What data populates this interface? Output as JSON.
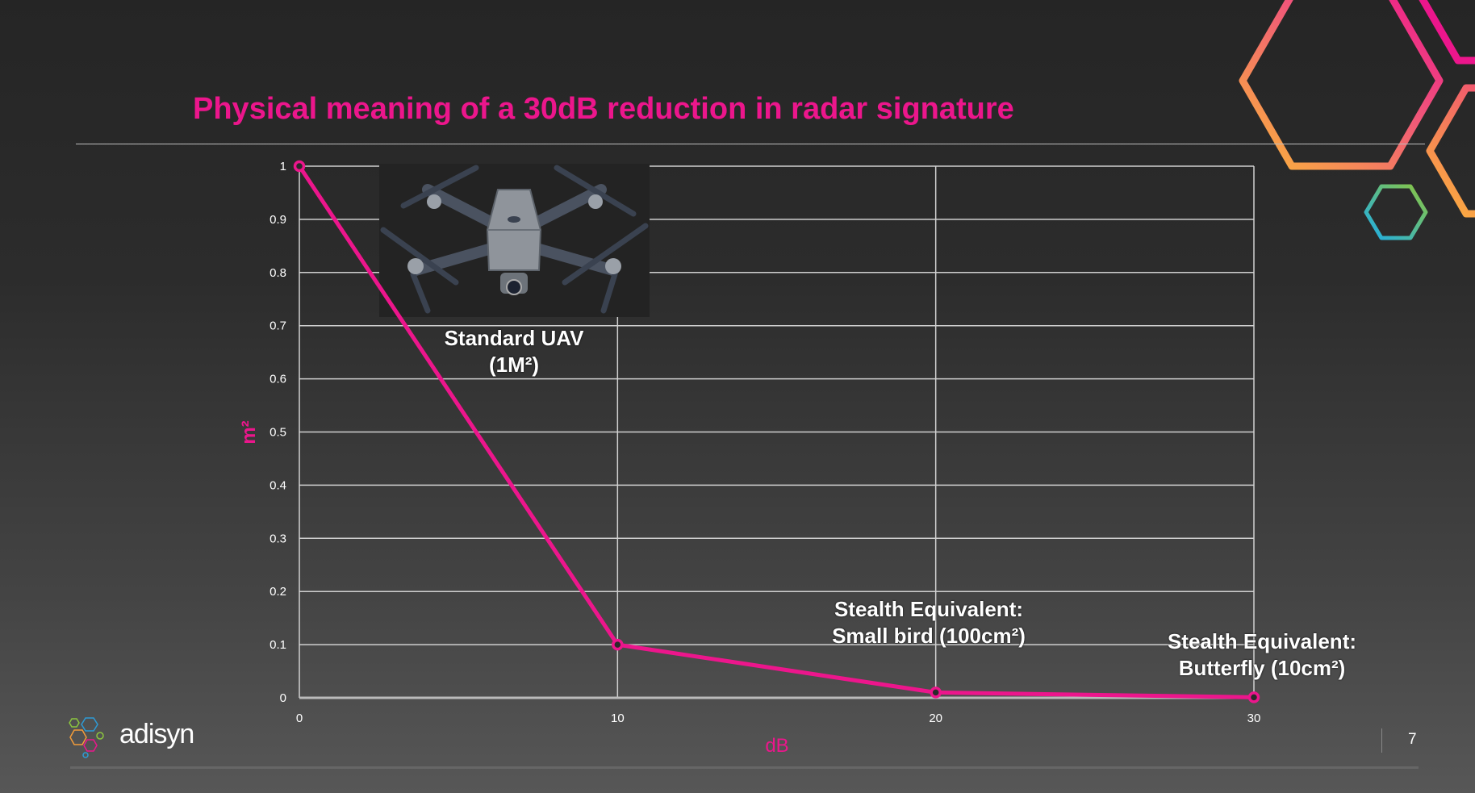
{
  "slide": {
    "title": "Physical meaning of a 30dB reduction in radar signature",
    "page_number": "7",
    "logo_text": "adisyn",
    "accent_color": "#ec168c"
  },
  "annotations": {
    "uav_line1": "Standard UAV",
    "uav_line2": "(1M²)",
    "bird_line1": "Stealth Equivalent:",
    "bird_line2": "Small bird (100cm²)",
    "butterfly_line1": "Stealth Equivalent:",
    "butterfly_line2": "Butterfly (10cm²)",
    "drone_image": "quadcopter-drone-icon"
  },
  "chart_data": {
    "type": "line",
    "title": "",
    "xlabel": "dB",
    "ylabel": "m²",
    "x": [
      0,
      10,
      20,
      30
    ],
    "series": [
      {
        "values": [
          1,
          0.1,
          0.01,
          0.001
        ],
        "color": "#ec168c"
      }
    ],
    "xlim": [
      0,
      30
    ],
    "ylim": [
      0,
      1
    ],
    "xticks": [
      "0",
      "10",
      "20",
      "30"
    ],
    "yticks": [
      "0",
      "0.1",
      "0.2",
      "0.3",
      "0.4",
      "0.5",
      "0.6",
      "0.7",
      "0.8",
      "0.9",
      "1"
    ],
    "grid": true,
    "legend": "none"
  }
}
